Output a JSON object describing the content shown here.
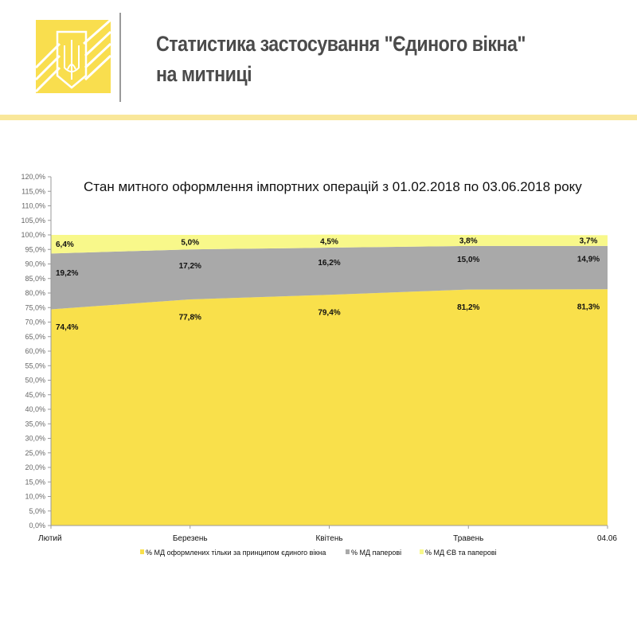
{
  "header": {
    "title_line1": "Статистика застосування \"Єдиного вікна\"",
    "title_line2": "на митниці",
    "accent": "#F9E79A",
    "logo_color": "#F9DE4E"
  },
  "chart_data": {
    "type": "area",
    "stacked": true,
    "title": "Стан митного оформлення імпортних операцій з 01.02.2018 по 03.06.2018 року",
    "categories": [
      "Лютий",
      "Березень",
      "Квітень",
      "Травень",
      "04.06"
    ],
    "ylim": [
      0,
      120
    ],
    "ytick_step": 5,
    "grid": false,
    "legend_placement": "bottom",
    "series": [
      {
        "name": "% МД оформлених тільки за принципом єдиного вікна",
        "values": [
          74.4,
          77.8,
          79.4,
          81.2,
          81.3
        ],
        "labels": [
          "74,4%",
          "77,8%",
          "79,4%",
          "81,2%",
          "81,3%"
        ],
        "color": "#F9E04B"
      },
      {
        "name": "% МД паперові",
        "values": [
          19.2,
          17.2,
          16.2,
          15.0,
          14.9
        ],
        "labels": [
          "19,2%",
          "17,2%",
          "16,2%",
          "15,0%",
          "14,9%"
        ],
        "color": "#A9A9A9"
      },
      {
        "name": "% МД ЄВ  та  паперові",
        "values": [
          6.4,
          5.0,
          4.5,
          3.8,
          3.7
        ],
        "labels": [
          "6,4%",
          "5,0%",
          "4,5%",
          "3,8%",
          "3,7%"
        ],
        "color": "#F8F88A"
      }
    ]
  }
}
